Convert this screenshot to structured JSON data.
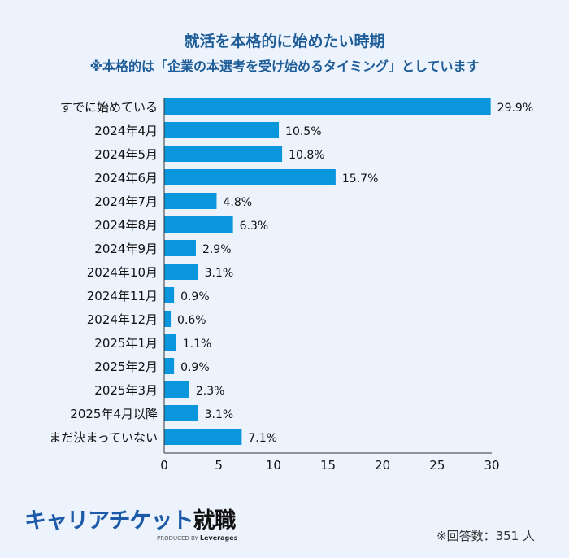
{
  "chart_data": {
    "type": "bar",
    "orientation": "horizontal",
    "title": "就活を本格的に始めたい時期",
    "subtitle": "※本格的は「企業の本選考を受け始めるタイミング」としています",
    "categories": [
      "すでに始めている",
      "2024年4月",
      "2024年5月",
      "2024年6月",
      "2024年7月",
      "2024年8月",
      "2024年9月",
      "2024年10月",
      "2024年11月",
      "2024年12月",
      "2025年1月",
      "2025年2月",
      "2025年3月",
      "2025年4月以降",
      "まだ決まっていない"
    ],
    "values": [
      29.9,
      10.5,
      10.8,
      15.7,
      4.8,
      6.3,
      2.9,
      3.1,
      0.9,
      0.6,
      1.1,
      0.9,
      2.3,
      3.1,
      7.1
    ],
    "value_labels": [
      "29.9%",
      "10.5%",
      "10.8%",
      "15.7%",
      "4.8%",
      "6.3%",
      "2.9%",
      "3.1%",
      "0.9%",
      "0.6%",
      "1.1%",
      "0.9%",
      "2.3%",
      "3.1%",
      "7.1%"
    ],
    "xlim": [
      0,
      30
    ],
    "xticks": [
      "0",
      "5",
      "10",
      "15",
      "20",
      "25",
      "30"
    ],
    "grid": false,
    "bar_color": "#0a96dc"
  },
  "footer": {
    "logo_main": "キャリアチケット",
    "logo_accent": "就職",
    "produced_by": "PRODUCED BY",
    "produced_brand": "Leverages",
    "respondents": "※回答数：351 人"
  }
}
